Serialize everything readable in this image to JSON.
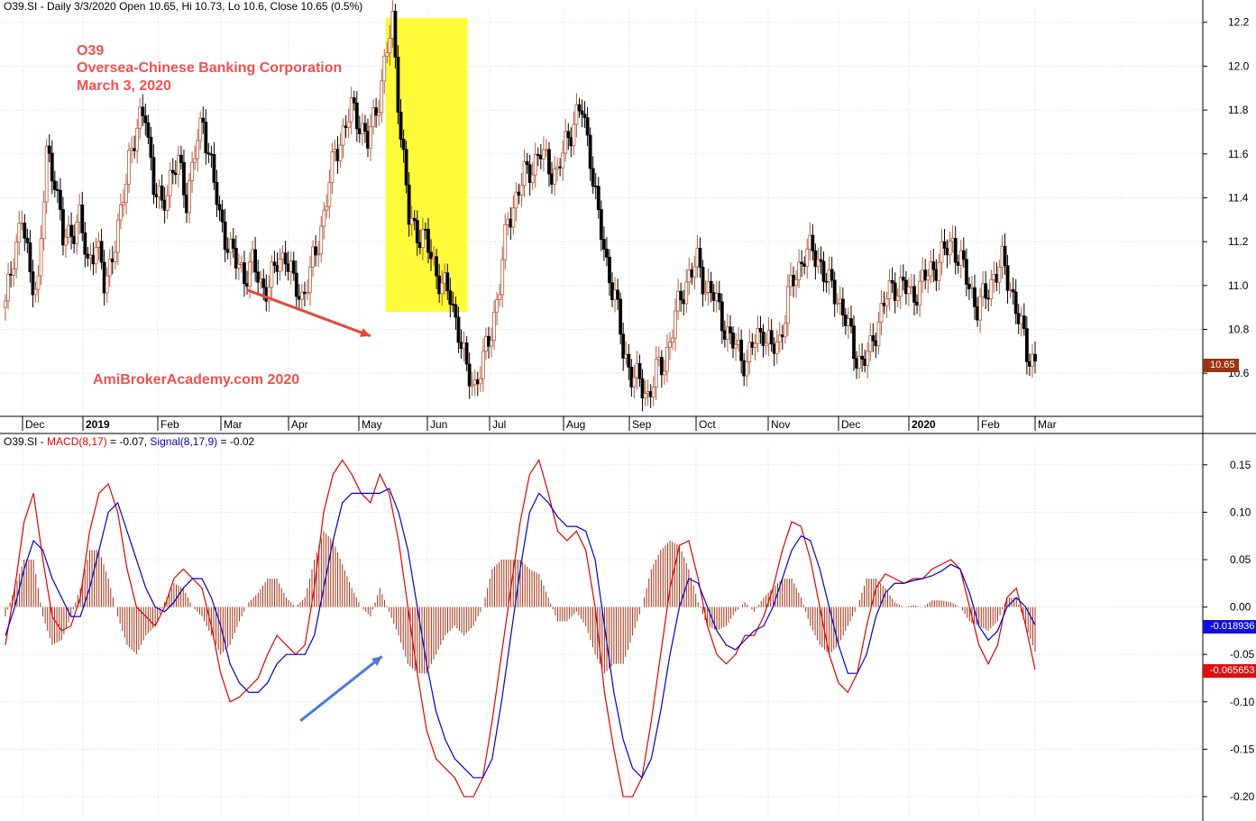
{
  "header": {
    "price_title": "O39.SI - Daily 3/3/2020 Open 10.65, Hi 10.73, Lo 10.6, Close 10.65 (0.5%)",
    "macd_prefix": "O39.SI - ",
    "macd_label": "MACD(8,17)",
    "macd_value": " = -0.07, ",
    "signal_label": "Signal(8,17,9)",
    "signal_value": " = -0.02"
  },
  "annotations": {
    "ticker": "O39",
    "company": "Oversea-Chinese Banking Corporation",
    "date": "March 3, 2020",
    "watermark": "AmiBrokerAcademy.com   2020"
  },
  "tags": {
    "last_price": "10.65",
    "signal_last": "-0.018936",
    "macd_last": "-0.065653"
  },
  "colors": {
    "macd": "#e00000",
    "signal": "#0000cc",
    "histogram": "#a03010",
    "candle_up": "#b85a3a",
    "candle_down": "#000000",
    "highlight": "#fffa3a",
    "annotation": "#f0514f",
    "arrow_red": "#e24a3a",
    "arrow_blue": "#4a7ad8",
    "grid": "#d8d8d8"
  },
  "chart_data": [
    {
      "type": "candlestick",
      "title": "O39.SI - Daily 3/3/2020 Open 10.65, Hi 10.73, Lo 10.6, Close 10.65 (0.5%)",
      "x_axis_labels": [
        "Dec",
        "2019",
        "Feb",
        "Mar",
        "Apr",
        "May",
        "Jun",
        "Jul",
        "Aug",
        "Sep",
        "Oct",
        "Nov",
        "Dec",
        "2020",
        "Feb",
        "Mar"
      ],
      "y_ticks": [
        10.6,
        10.8,
        11.0,
        11.2,
        11.4,
        11.6,
        11.8,
        12.0,
        12.2
      ],
      "ylim": [
        10.42,
        12.24
      ],
      "grid": true,
      "highlight_range": {
        "x": [
          41,
          49
        ],
        "y": [
          10.88,
          12.22
        ]
      },
      "arrows": [
        {
          "color": "red",
          "from": [
            26,
            10.98
          ],
          "to": [
            39,
            10.77
          ]
        }
      ],
      "closes_approx": [
        10.9,
        11.15,
        11.3,
        11.05,
        11.0,
        11.6,
        11.5,
        11.2,
        11.25,
        11.3,
        11.1,
        11.2,
        11.0,
        11.15,
        11.3,
        11.6,
        11.7,
        11.8,
        11.45,
        11.35,
        11.5,
        11.55,
        11.4,
        11.6,
        11.75,
        11.55,
        11.3,
        11.2,
        11.1,
        11.05,
        11.1,
        11.0,
        11.0,
        11.1,
        11.15,
        11.0,
        10.95,
        11.05,
        11.2,
        11.4,
        11.6,
        11.7,
        11.8,
        11.75,
        11.65,
        11.8,
        12.0,
        12.2,
        11.7,
        11.3,
        11.25,
        11.2,
        11.1,
        11.0,
        10.95,
        10.8,
        10.6,
        10.55,
        10.65,
        10.8,
        11.0,
        11.3,
        11.4,
        11.5,
        11.55,
        11.6,
        11.55,
        11.5,
        11.65,
        11.75,
        11.8,
        11.6,
        11.3,
        11.1,
        10.95,
        10.7,
        10.6,
        10.55,
        10.5,
        10.6,
        10.65,
        10.8,
        10.95,
        11.05,
        11.1,
        11.0,
        10.95,
        10.85,
        10.75,
        10.7,
        10.65,
        10.75,
        10.8,
        10.7,
        10.75,
        10.95,
        11.05,
        11.15,
        11.15,
        11.1,
        11.0,
        10.95,
        10.85,
        10.7,
        10.65,
        10.7,
        10.85,
        10.95,
        11.0,
        11.0,
        10.95,
        11.0,
        11.05,
        11.1,
        11.15,
        11.2,
        11.1,
        11.0,
        10.9,
        10.95,
        11.05,
        11.1,
        11.0,
        10.85,
        10.7,
        10.65
      ]
    },
    {
      "type": "line",
      "title": "O39.SI - MACD(8,17) = -0.07, Signal(8,17,9) = -0.02",
      "y_ticks": [
        -0.2,
        -0.15,
        -0.1,
        -0.05,
        0.0,
        0.05,
        0.1,
        0.15
      ],
      "ylim": [
        -0.22,
        0.165
      ],
      "grid": true,
      "arrows": [
        {
          "color": "blue",
          "from": [
            32,
            -0.12
          ],
          "to": [
            41,
            -0.052
          ]
        }
      ],
      "series": [
        {
          "name": "MACD(8,17)",
          "kind": "line",
          "points": [
            [
              0,
              -0.04
            ],
            [
              1,
              0.02
            ],
            [
              2,
              0.09
            ],
            [
              3,
              0.12
            ],
            [
              4,
              0.05
            ],
            [
              5,
              -0.01
            ],
            [
              6,
              -0.025
            ],
            [
              7,
              -0.02
            ],
            [
              8,
              0.01
            ],
            [
              9,
              0.08
            ],
            [
              10,
              0.12
            ],
            [
              11,
              0.13
            ],
            [
              12,
              0.1
            ],
            [
              13,
              0.04
            ],
            [
              14,
              0.0
            ],
            [
              15,
              -0.01
            ],
            [
              16,
              -0.02
            ],
            [
              17,
              0.0
            ],
            [
              18,
              0.03
            ],
            [
              19,
              0.04
            ],
            [
              20,
              0.03
            ],
            [
              21,
              0.02
            ],
            [
              22,
              -0.02
            ],
            [
              23,
              -0.07
            ],
            [
              24,
              -0.1
            ],
            [
              25,
              -0.095
            ],
            [
              26,
              -0.085
            ],
            [
              27,
              -0.075
            ],
            [
              28,
              -0.05
            ],
            [
              29,
              -0.03
            ],
            [
              30,
              -0.04
            ],
            [
              31,
              -0.05
            ],
            [
              32,
              -0.04
            ],
            [
              33,
              0.02
            ],
            [
              34,
              0.1
            ],
            [
              35,
              0.14
            ],
            [
              36,
              0.155
            ],
            [
              37,
              0.14
            ],
            [
              38,
              0.12
            ],
            [
              39,
              0.11
            ],
            [
              40,
              0.14
            ],
            [
              41,
              0.12
            ],
            [
              42,
              0.07
            ],
            [
              43,
              0.0
            ],
            [
              44,
              -0.07
            ],
            [
              45,
              -0.13
            ],
            [
              46,
              -0.16
            ],
            [
              47,
              -0.17
            ],
            [
              48,
              -0.18
            ],
            [
              49,
              -0.2
            ],
            [
              50,
              -0.2
            ],
            [
              51,
              -0.18
            ],
            [
              52,
              -0.12
            ],
            [
              53,
              -0.05
            ],
            [
              54,
              0.02
            ],
            [
              55,
              0.09
            ],
            [
              56,
              0.14
            ],
            [
              57,
              0.155
            ],
            [
              58,
              0.12
            ],
            [
              59,
              0.08
            ],
            [
              60,
              0.07
            ],
            [
              61,
              0.08
            ],
            [
              62,
              0.06
            ],
            [
              63,
              0.0
            ],
            [
              64,
              -0.09
            ],
            [
              65,
              -0.15
            ],
            [
              66,
              -0.2
            ],
            [
              67,
              -0.2
            ],
            [
              68,
              -0.18
            ],
            [
              69,
              -0.12
            ],
            [
              70,
              -0.05
            ],
            [
              71,
              0.02
            ],
            [
              72,
              0.065
            ],
            [
              73,
              0.07
            ],
            [
              74,
              0.03
            ],
            [
              75,
              -0.02
            ],
            [
              76,
              -0.05
            ],
            [
              77,
              -0.06
            ],
            [
              78,
              -0.05
            ],
            [
              79,
              -0.03
            ],
            [
              80,
              -0.03
            ],
            [
              81,
              -0.01
            ],
            [
              82,
              0.02
            ],
            [
              83,
              0.06
            ],
            [
              84,
              0.09
            ],
            [
              85,
              0.085
            ],
            [
              86,
              0.05
            ],
            [
              87,
              0.0
            ],
            [
              88,
              -0.05
            ],
            [
              89,
              -0.08
            ],
            [
              90,
              -0.09
            ],
            [
              91,
              -0.07
            ],
            [
              92,
              -0.02
            ],
            [
              93,
              0.02
            ],
            [
              94,
              0.035
            ],
            [
              95,
              0.03
            ],
            [
              96,
              0.025
            ],
            [
              97,
              0.03
            ],
            [
              98,
              0.03
            ],
            [
              99,
              0.04
            ],
            [
              100,
              0.045
            ],
            [
              101,
              0.05
            ],
            [
              102,
              0.04
            ],
            [
              103,
              0.0
            ],
            [
              104,
              -0.04
            ],
            [
              105,
              -0.06
            ],
            [
              106,
              -0.04
            ],
            [
              107,
              0.01
            ],
            [
              108,
              0.02
            ],
            [
              109,
              -0.02
            ],
            [
              110,
              -0.066
            ]
          ]
        },
        {
          "name": "Signal(8,17,9)",
          "kind": "line",
          "points": [
            [
              0,
              -0.03
            ],
            [
              1,
              0.0
            ],
            [
              2,
              0.04
            ],
            [
              3,
              0.07
            ],
            [
              4,
              0.06
            ],
            [
              5,
              0.03
            ],
            [
              6,
              0.01
            ],
            [
              7,
              -0.01
            ],
            [
              8,
              -0.01
            ],
            [
              9,
              0.02
            ],
            [
              10,
              0.06
            ],
            [
              11,
              0.1
            ],
            [
              12,
              0.11
            ],
            [
              13,
              0.08
            ],
            [
              14,
              0.05
            ],
            [
              15,
              0.02
            ],
            [
              16,
              0.0
            ],
            [
              17,
              -0.005
            ],
            [
              18,
              0.005
            ],
            [
              19,
              0.02
            ],
            [
              20,
              0.03
            ],
            [
              21,
              0.03
            ],
            [
              22,
              0.01
            ],
            [
              23,
              -0.02
            ],
            [
              24,
              -0.06
            ],
            [
              25,
              -0.08
            ],
            [
              26,
              -0.09
            ],
            [
              27,
              -0.09
            ],
            [
              28,
              -0.08
            ],
            [
              29,
              -0.06
            ],
            [
              30,
              -0.05
            ],
            [
              31,
              -0.05
            ],
            [
              32,
              -0.05
            ],
            [
              33,
              -0.03
            ],
            [
              34,
              0.02
            ],
            [
              35,
              0.07
            ],
            [
              36,
              0.11
            ],
            [
              37,
              0.12
            ],
            [
              38,
              0.12
            ],
            [
              39,
              0.12
            ],
            [
              40,
              0.12
            ],
            [
              41,
              0.125
            ],
            [
              42,
              0.1
            ],
            [
              43,
              0.06
            ],
            [
              44,
              0.0
            ],
            [
              45,
              -0.06
            ],
            [
              46,
              -0.11
            ],
            [
              47,
              -0.14
            ],
            [
              48,
              -0.16
            ],
            [
              49,
              -0.17
            ],
            [
              50,
              -0.18
            ],
            [
              51,
              -0.18
            ],
            [
              52,
              -0.16
            ],
            [
              53,
              -0.1
            ],
            [
              54,
              -0.03
            ],
            [
              55,
              0.04
            ],
            [
              56,
              0.1
            ],
            [
              57,
              0.12
            ],
            [
              58,
              0.11
            ],
            [
              59,
              0.095
            ],
            [
              60,
              0.085
            ],
            [
              61,
              0.085
            ],
            [
              62,
              0.08
            ],
            [
              63,
              0.05
            ],
            [
              64,
              -0.02
            ],
            [
              65,
              -0.09
            ],
            [
              66,
              -0.14
            ],
            [
              67,
              -0.17
            ],
            [
              68,
              -0.18
            ],
            [
              69,
              -0.16
            ],
            [
              70,
              -0.11
            ],
            [
              71,
              -0.05
            ],
            [
              72,
              0.0
            ],
            [
              73,
              0.03
            ],
            [
              74,
              0.025
            ],
            [
              75,
              0.0
            ],
            [
              76,
              -0.025
            ],
            [
              77,
              -0.04
            ],
            [
              78,
              -0.045
            ],
            [
              79,
              -0.035
            ],
            [
              80,
              -0.025
            ],
            [
              81,
              -0.02
            ],
            [
              82,
              0.0
            ],
            [
              83,
              0.03
            ],
            [
              84,
              0.06
            ],
            [
              85,
              0.075
            ],
            [
              86,
              0.07
            ],
            [
              87,
              0.04
            ],
            [
              88,
              0.0
            ],
            [
              89,
              -0.04
            ],
            [
              90,
              -0.07
            ],
            [
              91,
              -0.07
            ],
            [
              92,
              -0.05
            ],
            [
              93,
              -0.01
            ],
            [
              94,
              0.015
            ],
            [
              95,
              0.025
            ],
            [
              96,
              0.025
            ],
            [
              97,
              0.028
            ],
            [
              98,
              0.03
            ],
            [
              99,
              0.033
            ],
            [
              100,
              0.038
            ],
            [
              101,
              0.045
            ],
            [
              102,
              0.04
            ],
            [
              103,
              0.015
            ],
            [
              104,
              -0.02
            ],
            [
              105,
              -0.035
            ],
            [
              106,
              -0.025
            ],
            [
              107,
              0.0
            ],
            [
              108,
              0.01
            ],
            [
              109,
              0.0
            ],
            [
              110,
              -0.019
            ]
          ]
        },
        {
          "name": "Histogram",
          "kind": "bar",
          "derived": "MACD minus Signal"
        }
      ]
    }
  ]
}
